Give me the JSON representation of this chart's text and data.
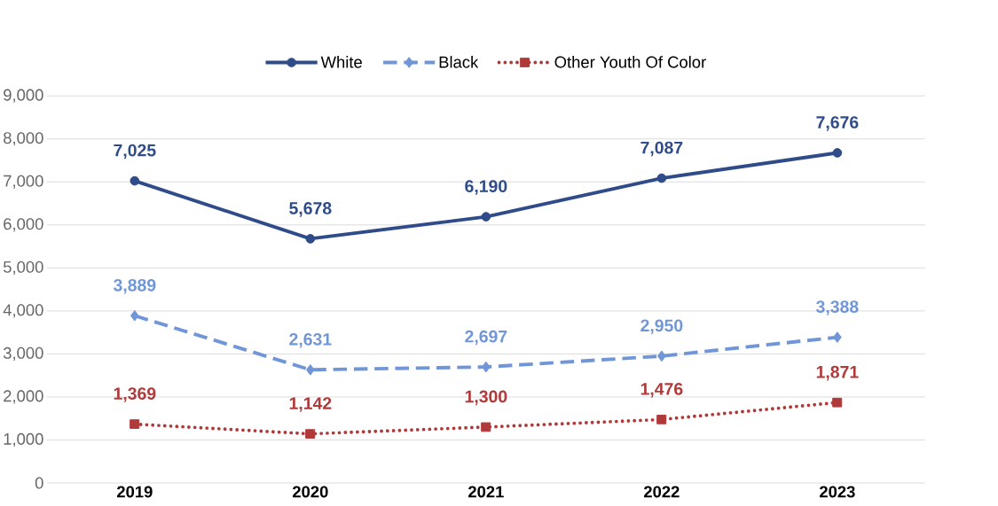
{
  "chart_data": {
    "type": "line",
    "categories": [
      "2019",
      "2020",
      "2021",
      "2022",
      "2023"
    ],
    "ylim": [
      0,
      9000
    ],
    "yticks": [
      0,
      {
        "value": 1000,
        "label": "1,000"
      },
      {
        "value": 2000,
        "label": "2,000"
      },
      {
        "value": 3000,
        "label": "3,000"
      },
      {
        "value": 4000,
        "label": "4,000"
      },
      {
        "value": 5000,
        "label": "5,000"
      },
      {
        "value": 6000,
        "label": "6,000"
      },
      {
        "value": 7000,
        "label": "7,000"
      },
      {
        "value": 8000,
        "label": "8,000"
      },
      {
        "value": 9000,
        "label": "9,000"
      }
    ],
    "grid": "y",
    "legend": "top",
    "series": [
      {
        "name": "White",
        "color": "#2f4b8a",
        "marker": "circle",
        "line_style": "solid",
        "values": [
          7025,
          5678,
          6190,
          7087,
          7676
        ],
        "value_labels": [
          "7,025",
          "5,678",
          "6,190",
          "7,087",
          "7,676"
        ]
      },
      {
        "name": "Black",
        "color": "#7096d8",
        "marker": "diamond",
        "line_style": "dashed",
        "values": [
          3889,
          2631,
          2697,
          2950,
          3388
        ],
        "value_labels": [
          "3,889",
          "2,631",
          "2,697",
          "2,950",
          "3,388"
        ]
      },
      {
        "name": "Other Youth Of Color",
        "color": "#b03a3a",
        "marker": "square",
        "line_style": "dotted",
        "values": [
          1369,
          1142,
          1300,
          1476,
          1871
        ],
        "value_labels": [
          "1,369",
          "1,142",
          "1,300",
          "1,476",
          "1,871"
        ]
      }
    ]
  }
}
